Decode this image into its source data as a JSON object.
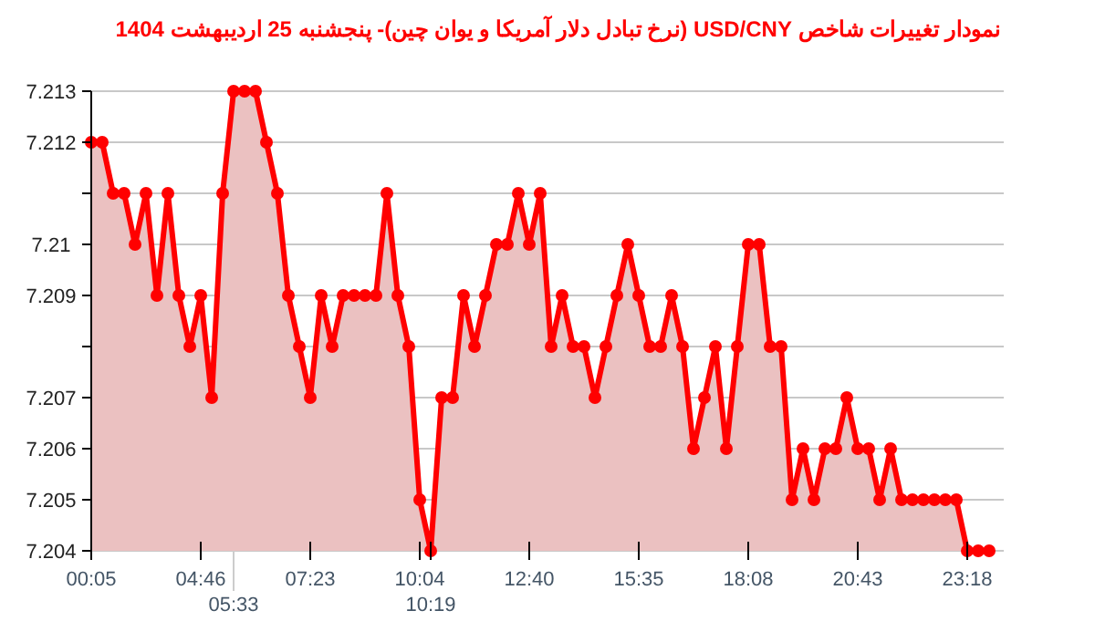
{
  "chart_data": {
    "type": "area",
    "title": "نمودار تغییرات شاخص USD/CNY (نرخ تبادل دلار آمریکا و یوان چین)- پنجشنبه  25 اردیبهشت 1404",
    "categories": [
      "00:05",
      null,
      null,
      null,
      null,
      null,
      null,
      null,
      null,
      null,
      "04:46",
      null,
      null,
      "05:33",
      null,
      null,
      null,
      null,
      null,
      null,
      "07:23",
      null,
      null,
      null,
      null,
      null,
      null,
      null,
      null,
      null,
      "10:04",
      "10:19",
      null,
      null,
      null,
      null,
      null,
      null,
      null,
      null,
      "12:40",
      null,
      null,
      null,
      null,
      null,
      null,
      null,
      null,
      null,
      "15:35",
      null,
      null,
      null,
      null,
      null,
      null,
      null,
      null,
      null,
      "18:08",
      null,
      null,
      null,
      null,
      null,
      null,
      null,
      null,
      null,
      "20:43",
      null,
      null,
      null,
      null,
      null,
      null,
      null,
      null,
      null,
      "23:18",
      null,
      null
    ],
    "series": [
      {
        "color": "#ff0000",
        "values": [
          7.212,
          7.212,
          7.211,
          7.211,
          7.21,
          7.211,
          7.209,
          7.211,
          7.209,
          7.208,
          7.209,
          7.207,
          7.211,
          7.213,
          7.213,
          7.213,
          7.212,
          7.211,
          7.209,
          7.208,
          7.207,
          7.209,
          7.208,
          7.209,
          7.209,
          7.209,
          7.209,
          7.211,
          7.209,
          7.208,
          7.205,
          7.204,
          7.207,
          7.207,
          7.209,
          7.208,
          7.209,
          7.21,
          7.21,
          7.211,
          7.21,
          7.211,
          7.208,
          7.209,
          7.208,
          7.208,
          7.207,
          7.208,
          7.209,
          7.21,
          7.209,
          7.208,
          7.208,
          7.209,
          7.208,
          7.206,
          7.207,
          7.208,
          7.206,
          7.208,
          7.21,
          7.21,
          7.208,
          7.208,
          7.205,
          7.206,
          7.205,
          7.206,
          7.206,
          7.207,
          7.206,
          7.206,
          7.205,
          7.206,
          7.205,
          7.205,
          7.205,
          7.205,
          7.205,
          7.205,
          7.204,
          7.204,
          7.204
        ]
      }
    ],
    "ylim": [
      7.204,
      7.213
    ],
    "yticks": [
      7.204,
      7.205,
      7.206,
      7.207,
      {
        "value": 7.208,
        "label": null
      },
      7.209,
      7.21,
      {
        "value": 7.211,
        "label": null
      },
      7.212,
      7.213
    ],
    "grid": "y",
    "marker": "circle",
    "line_style": "solid",
    "ref_lines": [
      {
        "axis": "x",
        "value": "05:33",
        "color": "#cccccc"
      }
    ]
  }
}
